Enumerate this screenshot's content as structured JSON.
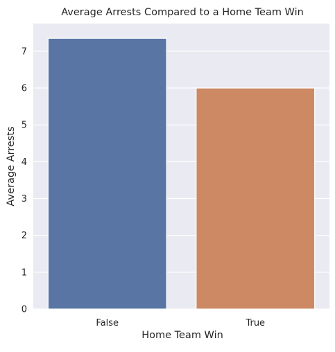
{
  "chart_data": {
    "type": "bar",
    "title": "Average Arrests Compared to a Home Team Win",
    "xlabel": "Home Team Win",
    "ylabel": "Average Arrests",
    "categories": [
      "False",
      "True"
    ],
    "values": [
      7.35,
      6.0
    ],
    "ylim": [
      0,
      7.75
    ],
    "yticks": [
      "0",
      "1",
      "2",
      "3",
      "4",
      "5",
      "6",
      "7"
    ],
    "grid": true,
    "legend": "none",
    "colors": {
      "background": "#EAEAF2",
      "grid": "#FFFFFF",
      "bars": [
        "#5875A4",
        "#CC8963"
      ]
    }
  }
}
